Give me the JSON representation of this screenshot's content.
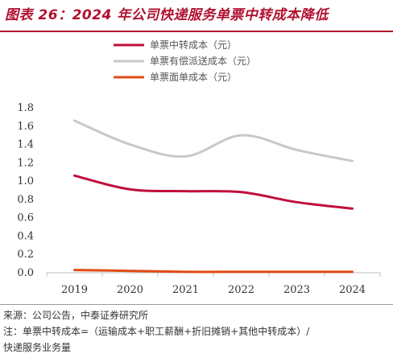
{
  "figure": {
    "title": "图表 26：2024 年公司快递服务单票中转成本降低"
  },
  "footer": {
    "source": "来源：公司公告，中泰证券研究所",
    "note_line1": "注：单票中转成本=（运输成本+职工薪酬+折旧摊销+其他中转成本）/",
    "note_line2": "快递服务业务量"
  },
  "chart_data": {
    "type": "line",
    "title": "",
    "xlabel": "",
    "ylabel": "",
    "x": [
      "2019",
      "2020",
      "2021",
      "2022",
      "2023",
      "2024"
    ],
    "ylim": [
      0,
      1.8
    ],
    "yticks": [
      "0.0",
      "0.2",
      "0.4",
      "0.6",
      "0.8",
      "1.0",
      "1.2",
      "1.4",
      "1.6",
      "1.8"
    ],
    "grid": false,
    "legend_position": "top",
    "series": [
      {
        "name": "单票中转成本（元）",
        "color": "#c00f3c",
        "values": [
          1.06,
          0.91,
          0.89,
          0.88,
          0.77,
          0.7
        ]
      },
      {
        "name": "单票有偿派送成本（元）",
        "color": "#c8c8c8",
        "values": [
          1.66,
          1.4,
          1.27,
          1.5,
          1.34,
          1.22
        ]
      },
      {
        "name": "单票面单成本（元）",
        "color": "#e04b14",
        "values": [
          0.03,
          0.02,
          0.01,
          0.01,
          0.01,
          0.01
        ]
      }
    ]
  }
}
